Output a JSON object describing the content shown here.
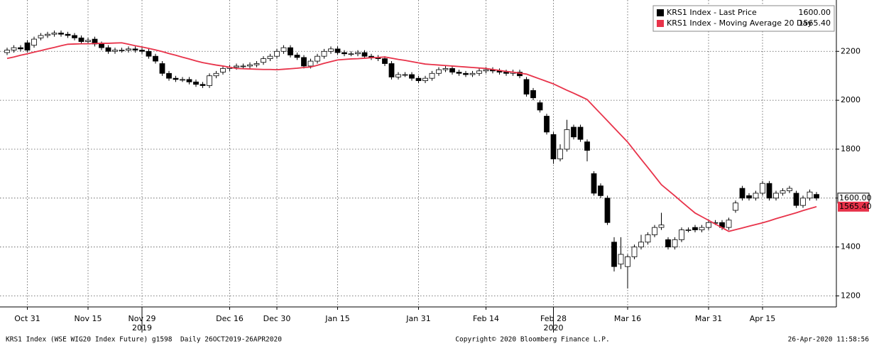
{
  "chart_data": {
    "type": "candlestick",
    "categories": [
      null,
      null,
      null,
      "Oct 31",
      null,
      null,
      null,
      null,
      null,
      null,
      null,
      null,
      "Nov 15",
      null,
      null,
      null,
      null,
      null,
      null,
      null,
      "Nov 29",
      null,
      null,
      null,
      null,
      null,
      null,
      null,
      null,
      null,
      null,
      null,
      null,
      "Dec 16",
      null,
      null,
      null,
      null,
      null,
      null,
      "Dec 30",
      null,
      null,
      null,
      null,
      null,
      null,
      null,
      null,
      "Jan 15",
      null,
      null,
      null,
      null,
      null,
      null,
      null,
      null,
      null,
      null,
      null,
      "Jan 31",
      null,
      null,
      null,
      null,
      null,
      null,
      null,
      null,
      null,
      "Feb 14",
      null,
      null,
      null,
      null,
      null,
      null,
      null,
      null,
      null,
      "Feb 28",
      null,
      null,
      null,
      null,
      null,
      null,
      null,
      null,
      null,
      null,
      "Mar 16",
      null,
      null,
      null,
      null,
      null,
      null,
      null,
      null,
      null,
      null,
      null,
      "Mar 31",
      null,
      null,
      null,
      null,
      null,
      null,
      null,
      "Apr 15",
      null,
      null,
      null,
      null,
      null,
      null,
      null,
      null
    ],
    "category_years": [
      null,
      null,
      null,
      null,
      null,
      null,
      null,
      null,
      null,
      null,
      null,
      null,
      null,
      null,
      null,
      null,
      null,
      null,
      null,
      null,
      "2019",
      null,
      null,
      null,
      null,
      null,
      null,
      null,
      null,
      null,
      null,
      null,
      null,
      null,
      null,
      null,
      null,
      null,
      null,
      null,
      null,
      null,
      null,
      null,
      null,
      null,
      null,
      null,
      null,
      null,
      null,
      null,
      null,
      null,
      null,
      null,
      null,
      null,
      null,
      null,
      null,
      null,
      null,
      null,
      null,
      null,
      null,
      null,
      null,
      null,
      null,
      null,
      null,
      null,
      null,
      null,
      null,
      null,
      null,
      null,
      null,
      "2020",
      null,
      null,
      null,
      null,
      null,
      null,
      null,
      null,
      null,
      null,
      null,
      null,
      null,
      null,
      null,
      null,
      null,
      null,
      null,
      null,
      null,
      null,
      null,
      null,
      null,
      null,
      null,
      null,
      null,
      null,
      null,
      null,
      null,
      null,
      null,
      null,
      null,
      null,
      null
    ],
    "series": [
      {
        "name": "KRS1 Index - Last Price",
        "color": "#000000",
        "last_label": "1600.00",
        "open": [
          2195,
          2205,
          2215,
          2235,
          2225,
          2255,
          2265,
          2270,
          2275,
          2270,
          2265,
          2255,
          2240,
          2250,
          2230,
          2215,
          2200,
          2205,
          2205,
          2210,
          2205,
          2200,
          2180,
          2150,
          2110,
          2090,
          2085,
          2085,
          2075,
          2065,
          2060,
          2100,
          2115,
          2130,
          2135,
          2140,
          2140,
          2145,
          2155,
          2170,
          2180,
          2200,
          2215,
          2185,
          2175,
          2140,
          2160,
          2180,
          2200,
          2210,
          2195,
          2190,
          2190,
          2195,
          2180,
          2175,
          2170,
          2150,
          2095,
          2105,
          2105,
          2090,
          2080,
          2090,
          2110,
          2125,
          2130,
          2115,
          2110,
          2105,
          2110,
          2120,
          2125,
          2120,
          2115,
          2110,
          2115,
          2085,
          2040,
          1990,
          1935,
          1860,
          1760,
          1800,
          1890,
          1890,
          1830,
          1700,
          1650,
          1600,
          1420,
          1330,
          1320,
          1360,
          1400,
          1420,
          1450,
          1480,
          1430,
          1400,
          1430,
          1470,
          1480,
          1470,
          1480,
          1500,
          1500,
          1480,
          1550,
          1640,
          1610,
          1600,
          1620,
          1660,
          1600,
          1620,
          1630,
          1620,
          1570,
          1600,
          1615
        ],
        "high": [
          2215,
          2225,
          2225,
          2245,
          2260,
          2275,
          2280,
          2285,
          2285,
          2280,
          2275,
          2265,
          2255,
          2260,
          2240,
          2225,
          2215,
          2215,
          2220,
          2220,
          2215,
          2210,
          2190,
          2160,
          2120,
          2100,
          2095,
          2095,
          2085,
          2075,
          2110,
          2120,
          2140,
          2145,
          2150,
          2150,
          2155,
          2160,
          2180,
          2190,
          2210,
          2225,
          2225,
          2195,
          2185,
          2170,
          2190,
          2210,
          2220,
          2220,
          2205,
          2200,
          2205,
          2205,
          2190,
          2185,
          2180,
          2160,
          2115,
          2115,
          2115,
          2100,
          2100,
          2120,
          2135,
          2140,
          2140,
          2125,
          2120,
          2120,
          2130,
          2135,
          2135,
          2130,
          2125,
          2125,
          2125,
          2095,
          2050,
          2000,
          1945,
          1870,
          1820,
          1920,
          1900,
          1900,
          1840,
          1710,
          1660,
          1610,
          1440,
          1440,
          1370,
          1410,
          1450,
          1460,
          1490,
          1540,
          1440,
          1440,
          1480,
          1480,
          1490,
          1490,
          1510,
          1510,
          1510,
          1520,
          1590,
          1650,
          1620,
          1630,
          1670,
          1670,
          1630,
          1640,
          1650,
          1630,
          1610,
          1635,
          1625
        ],
        "low": [
          2185,
          2195,
          2200,
          2195,
          2215,
          2245,
          2255,
          2260,
          2260,
          2255,
          2245,
          2230,
          2230,
          2220,
          2205,
          2190,
          2190,
          2195,
          2195,
          2195,
          2190,
          2170,
          2150,
          2100,
          2080,
          2075,
          2075,
          2065,
          2055,
          2050,
          2050,
          2090,
          2105,
          2120,
          2125,
          2130,
          2130,
          2135,
          2145,
          2160,
          2170,
          2190,
          2175,
          2165,
          2130,
          2130,
          2150,
          2170,
          2190,
          2185,
          2180,
          2180,
          2180,
          2170,
          2165,
          2160,
          2140,
          2085,
          2085,
          2095,
          2080,
          2070,
          2070,
          2080,
          2100,
          2115,
          2105,
          2100,
          2095,
          2095,
          2100,
          2110,
          2110,
          2105,
          2100,
          2100,
          2090,
          2015,
          2000,
          1950,
          1860,
          1740,
          1750,
          1790,
          1840,
          1830,
          1750,
          1610,
          1600,
          1490,
          1300,
          1310,
          1230,
          1350,
          1390,
          1410,
          1440,
          1470,
          1390,
          1390,
          1420,
          1460,
          1460,
          1460,
          1470,
          1490,
          1470,
          1470,
          1540,
          1590,
          1590,
          1590,
          1610,
          1590,
          1590,
          1610,
          1620,
          1560,
          1560,
          1590,
          1590
        ],
        "close": [
          2205,
          2215,
          2210,
          2205,
          2250,
          2265,
          2270,
          2275,
          2270,
          2265,
          2255,
          2240,
          2245,
          2230,
          2215,
          2200,
          2205,
          2205,
          2210,
          2205,
          2200,
          2180,
          2160,
          2110,
          2090,
          2085,
          2085,
          2075,
          2065,
          2060,
          2100,
          2110,
          2130,
          2135,
          2140,
          2140,
          2145,
          2150,
          2170,
          2180,
          2200,
          2215,
          2185,
          2175,
          2140,
          2160,
          2180,
          2200,
          2210,
          2195,
          2190,
          2190,
          2195,
          2180,
          2175,
          2170,
          2150,
          2095,
          2105,
          2105,
          2090,
          2080,
          2090,
          2110,
          2125,
          2130,
          2115,
          2110,
          2105,
          2110,
          2120,
          2125,
          2120,
          2115,
          2110,
          2115,
          2100,
          2025,
          2010,
          1960,
          1870,
          1760,
          1800,
          1880,
          1850,
          1840,
          1795,
          1620,
          1610,
          1500,
          1320,
          1370,
          1360,
          1400,
          1420,
          1450,
          1480,
          1490,
          1400,
          1430,
          1470,
          1470,
          1470,
          1480,
          1500,
          1500,
          1480,
          1510,
          1580,
          1600,
          1600,
          1620,
          1660,
          1600,
          1620,
          1630,
          1640,
          1570,
          1600,
          1625,
          1600
        ]
      },
      {
        "name": "KRS1 Index - Moving Average 20 Day",
        "color": "#e8334a",
        "last_label": "1565.40",
        "values": [
          2171,
          2177,
          2184,
          2190,
          2197,
          2203,
          2210,
          2216,
          2223,
          2229,
          2230,
          2231,
          2231,
          2232,
          2233,
          2233,
          2234,
          2235,
          2229,
          2223,
          2218,
          2212,
          2206,
          2199,
          2191,
          2184,
          2176,
          2169,
          2161,
          2154,
          2149,
          2144,
          2140,
          2135,
          2130,
          2129,
          2128,
          2127,
          2126,
          2126,
          2125,
          2127,
          2129,
          2131,
          2134,
          2136,
          2143,
          2151,
          2158,
          2165,
          2167,
          2169,
          2170,
          2172,
          2174,
          2175,
          2177,
          2172,
          2167,
          2163,
          2158,
          2153,
          2148,
          2146,
          2144,
          2142,
          2140,
          2138,
          2136,
          2134,
          2132,
          2130,
          2126,
          2122,
          2118,
          2115,
          2111,
          2107,
          2097,
          2087,
          2077,
          2067,
          2054,
          2041,
          2029,
          2016,
          2003,
          1974,
          1945,
          1916,
          1887,
          1858,
          1829,
          1794,
          1759,
          1725,
          1690,
          1655,
          1632,
          1609,
          1585,
          1562,
          1539,
          1524,
          1509,
          1494,
          1479,
          1464,
          1471,
          1478,
          1485,
          1492,
          1499,
          1507,
          1516,
          1524,
          1532,
          1540,
          1549,
          1557,
          1565
        ]
      }
    ],
    "ylim": [
      1155,
      2410
    ],
    "yticks": [
      1200,
      1400,
      1600,
      1800,
      2000,
      2200
    ],
    "grid": true,
    "legend": "top-right",
    "footer_left": "KRS1 Index (WSE WIG20 Index Future) g1598  Daily 26OCT2019-26APR2020",
    "footer_center": "Copyright© 2020 Bloomberg Finance L.P.",
    "footer_right": "26-Apr-2020 11:58:56"
  }
}
